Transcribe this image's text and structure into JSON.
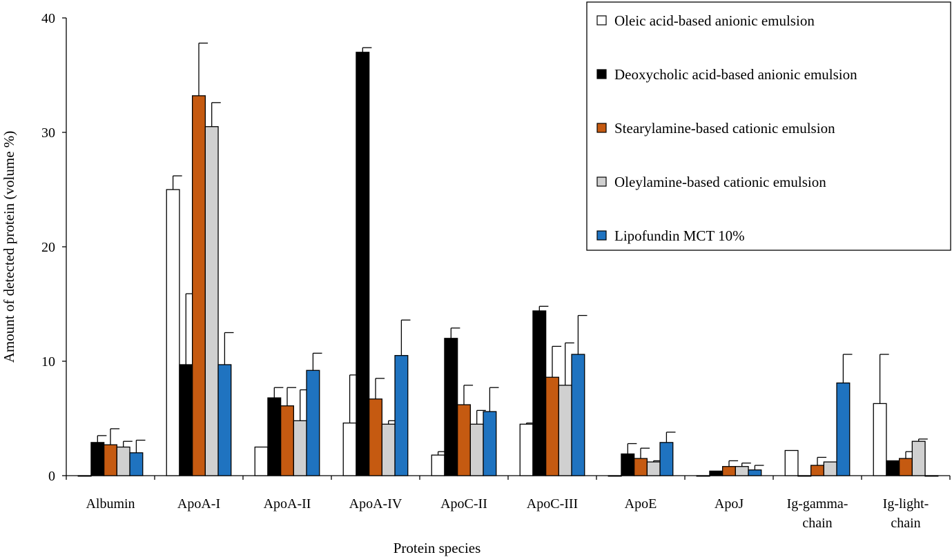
{
  "chart_data": {
    "type": "bar",
    "title": "",
    "xlabel": "Protein species",
    "ylabel": "Amount of detected protein (volume %)",
    "ylim": [
      0,
      40
    ],
    "yticks": [
      0,
      10,
      20,
      30,
      40
    ],
    "grid": false,
    "legend_position": "top-right",
    "categories": [
      [
        "Albumin"
      ],
      [
        "ApoA-I"
      ],
      [
        "ApoA-II"
      ],
      [
        "ApoA-IV"
      ],
      [
        "ApoC-II"
      ],
      [
        "ApoC-III"
      ],
      [
        "ApoE"
      ],
      [
        "ApoJ"
      ],
      [
        "Ig-gamma-",
        "chain"
      ],
      [
        "Ig-light-",
        "chain"
      ]
    ],
    "series": [
      {
        "name": "Oleic acid-based anionic emulsion",
        "color": "#ffffff",
        "values": [
          0,
          25.0,
          2.5,
          4.6,
          1.8,
          4.5,
          0,
          0,
          2.2,
          6.3
        ],
        "errors": [
          0,
          1.2,
          0,
          4.2,
          0.3,
          0.1,
          0,
          0,
          0,
          4.3
        ]
      },
      {
        "name": "Deoxycholic acid-based anionic emulsion",
        "color": "#000000",
        "values": [
          2.9,
          9.7,
          6.8,
          37.0,
          12.0,
          14.4,
          1.9,
          0.4,
          0,
          1.3
        ],
        "errors": [
          0.6,
          6.2,
          0.9,
          0.4,
          0.9,
          0.4,
          0.9,
          0,
          0,
          0
        ]
      },
      {
        "name": "Stearylamine-based cationic emulsion",
        "color": "#c55a11",
        "values": [
          2.7,
          33.2,
          6.1,
          6.7,
          6.2,
          8.6,
          1.5,
          0.8,
          0.9,
          1.5
        ],
        "errors": [
          1.4,
          4.6,
          1.6,
          1.8,
          1.7,
          2.7,
          0.9,
          0.5,
          0.7,
          0.6
        ]
      },
      {
        "name": "Oleylamine-based cationic emulsion",
        "color": "#d0d0d0",
        "values": [
          2.5,
          30.5,
          4.8,
          4.5,
          4.5,
          7.9,
          1.2,
          0.8,
          1.2,
          3.0
        ],
        "errors": [
          0.5,
          2.1,
          2.7,
          0.3,
          1.2,
          3.7,
          0.1,
          0.3,
          0,
          0.2
        ]
      },
      {
        "name": "Lipofundin MCT 10%",
        "color": "#1f73c0",
        "values": [
          2.0,
          9.7,
          9.2,
          10.5,
          5.6,
          10.6,
          2.9,
          0.5,
          8.1,
          0
        ],
        "errors": [
          1.1,
          2.8,
          1.5,
          3.1,
          2.1,
          3.4,
          0.9,
          0.4,
          2.5,
          0
        ]
      }
    ]
  }
}
